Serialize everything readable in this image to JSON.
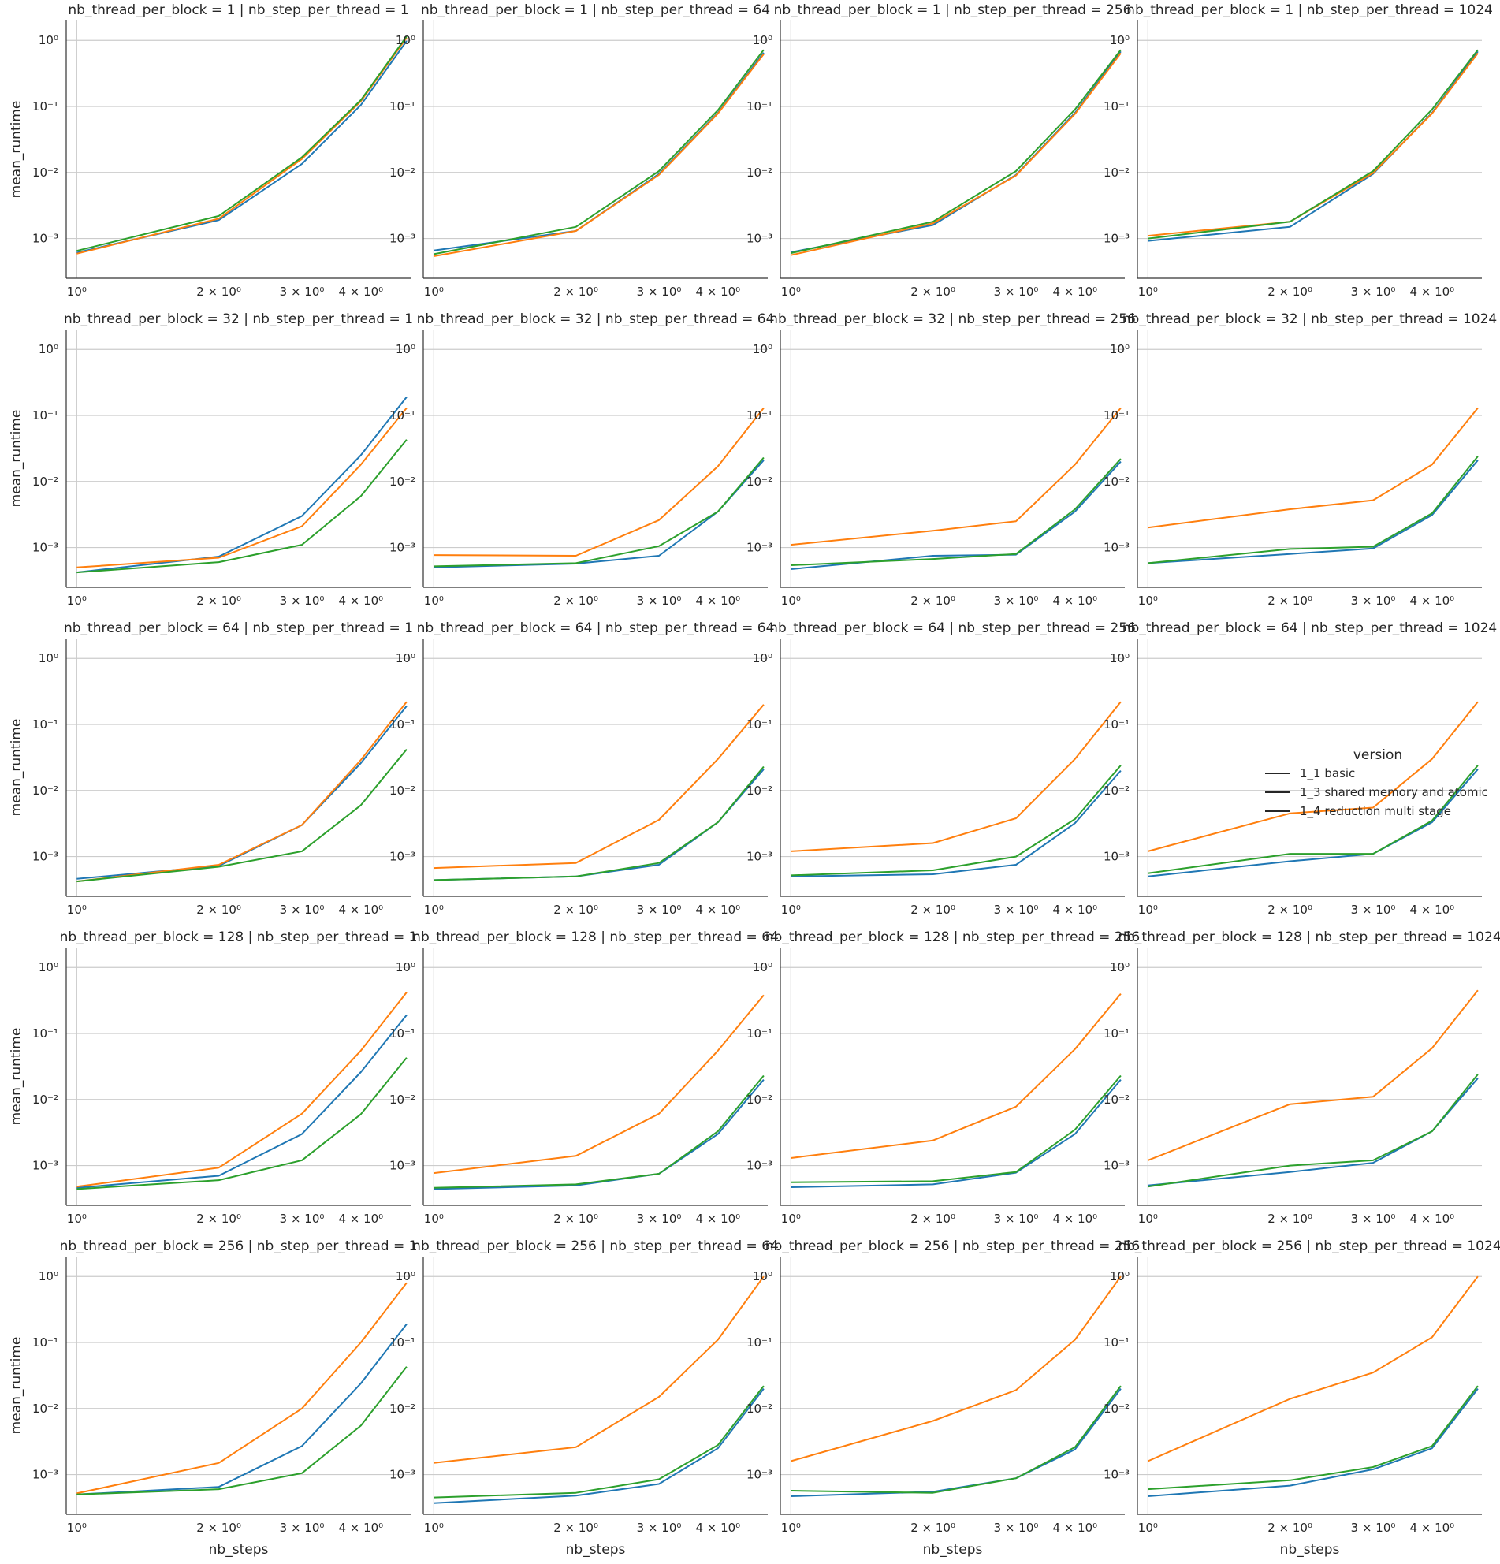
{
  "chart_data": {
    "type": "line",
    "facet_row_var": "nb_thread_per_block",
    "facet_col_var": "nb_step_per_thread",
    "row_values": [
      1,
      32,
      64,
      128,
      256
    ],
    "col_values": [
      1,
      64,
      256,
      1024
    ],
    "xlabel": "nb_steps",
    "ylabel": "mean_runtime",
    "xscale": "log",
    "yscale": "log",
    "x_ticks": [
      {
        "value": 1,
        "label": "10⁰"
      },
      {
        "value": 2,
        "label": "2 × 10⁰"
      },
      {
        "value": 3,
        "label": "3 × 10⁰"
      },
      {
        "value": 4,
        "label": "4 × 10⁰"
      }
    ],
    "y_ticks": [
      {
        "value": 0.001,
        "label": "10⁻³"
      },
      {
        "value": 0.01,
        "label": "10⁻²"
      },
      {
        "value": 0.1,
        "label": "10⁻¹"
      },
      {
        "value": 1,
        "label": "10⁰"
      }
    ],
    "xlim": [
      0.95,
      5.1
    ],
    "ylim": [
      0.00025,
      2.0
    ],
    "x": [
      1,
      2,
      3,
      4,
      5
    ],
    "grid": "horizontal",
    "legend": {
      "title": "version",
      "placement": "right",
      "entries": [
        {
          "name": "1_1 basic",
          "color": "#1f77b4"
        },
        {
          "name": "1_3 shared memory and atomic",
          "color": "#ff7f0e"
        },
        {
          "name": "1_4 reduction multi stage",
          "color": "#2ca02c"
        }
      ]
    },
    "panels": [
      {
        "title": "nb_thread_per_block = 1 | nb_step_per_thread = 1",
        "series": [
          {
            "name": "1_1 basic",
            "values": [
              0.00061,
              0.0019,
              0.0135,
              0.105,
              0.98
            ]
          },
          {
            "name": "1_3 shared memory and atomic",
            "values": [
              0.00059,
              0.002,
              0.016,
              0.12,
              1.1
            ]
          },
          {
            "name": "1_4 reduction multi stage",
            "values": [
              0.00065,
              0.0022,
              0.017,
              0.125,
              1.15
            ]
          }
        ]
      },
      {
        "title": "nb_thread_per_block = 1 | nb_step_per_thread = 64",
        "series": [
          {
            "name": "1_1 basic",
            "values": [
              0.00066,
              0.0013,
              0.0095,
              0.08,
              0.65
            ]
          },
          {
            "name": "1_3 shared memory and atomic",
            "values": [
              0.00054,
              0.0013,
              0.0092,
              0.078,
              0.62
            ]
          },
          {
            "name": "1_4 reduction multi stage",
            "values": [
              0.00058,
              0.0015,
              0.0105,
              0.088,
              0.72
            ]
          }
        ]
      },
      {
        "title": "nb_thread_per_block = 1 | nb_step_per_thread = 256",
        "series": [
          {
            "name": "1_1 basic",
            "values": [
              0.00062,
              0.0016,
              0.0092,
              0.08,
              0.68
            ]
          },
          {
            "name": "1_3 shared memory and atomic",
            "values": [
              0.00056,
              0.0017,
              0.009,
              0.077,
              0.64
            ]
          },
          {
            "name": "1_4 reduction multi stage",
            "values": [
              0.0006,
              0.0018,
              0.0105,
              0.09,
              0.72
            ]
          }
        ]
      },
      {
        "title": "nb_thread_per_block = 1 | nb_step_per_thread = 1024",
        "series": [
          {
            "name": "1_1 basic",
            "values": [
              0.00092,
              0.0015,
              0.0095,
              0.08,
              0.68
            ]
          },
          {
            "name": "1_3 shared memory and atomic",
            "values": [
              0.0011,
              0.0018,
              0.0098,
              0.078,
              0.64
            ]
          },
          {
            "name": "1_4 reduction multi stage",
            "values": [
              0.001,
              0.0018,
              0.0105,
              0.09,
              0.72
            ]
          }
        ]
      },
      {
        "title": "nb_thread_per_block = 32 | nb_step_per_thread = 1",
        "series": [
          {
            "name": "1_1 basic",
            "values": [
              0.00042,
              0.00073,
              0.003,
              0.025,
              0.19
            ]
          },
          {
            "name": "1_3 shared memory and atomic",
            "values": [
              0.0005,
              0.0007,
              0.0021,
              0.018,
              0.13
            ]
          },
          {
            "name": "1_4 reduction multi stage",
            "values": [
              0.00042,
              0.0006,
              0.0011,
              0.006,
              0.043
            ]
          }
        ]
      },
      {
        "title": "nb_thread_per_block = 32 | nb_step_per_thread = 64",
        "series": [
          {
            "name": "1_1 basic",
            "values": [
              0.0005,
              0.00057,
              0.00075,
              0.0035,
              0.021
            ]
          },
          {
            "name": "1_3 shared memory and atomic",
            "values": [
              0.00077,
              0.00075,
              0.0026,
              0.017,
              0.13
            ]
          },
          {
            "name": "1_4 reduction multi stage",
            "values": [
              0.00052,
              0.00058,
              0.00105,
              0.0035,
              0.023
            ]
          }
        ]
      },
      {
        "title": "nb_thread_per_block = 32 | nb_step_per_thread = 256",
        "series": [
          {
            "name": "1_1 basic",
            "values": [
              0.00047,
              0.00075,
              0.00078,
              0.0035,
              0.02
            ]
          },
          {
            "name": "1_3 shared memory and atomic",
            "values": [
              0.0011,
              0.0018,
              0.0025,
              0.018,
              0.13
            ]
          },
          {
            "name": "1_4 reduction multi stage",
            "values": [
              0.00054,
              0.00067,
              0.0008,
              0.0038,
              0.022
            ]
          }
        ]
      },
      {
        "title": "nb_thread_per_block = 32 | nb_step_per_thread = 1024",
        "series": [
          {
            "name": "1_1 basic",
            "values": [
              0.00058,
              0.0008,
              0.00097,
              0.0031,
              0.021
            ]
          },
          {
            "name": "1_3 shared memory and atomic",
            "values": [
              0.002,
              0.0038,
              0.0052,
              0.018,
              0.13
            ]
          },
          {
            "name": "1_4 reduction multi stage",
            "values": [
              0.00058,
              0.00095,
              0.00103,
              0.0033,
              0.024
            ]
          }
        ]
      },
      {
        "title": "nb_thread_per_block = 64 | nb_step_per_thread = 1",
        "series": [
          {
            "name": "1_1 basic",
            "values": [
              0.00046,
              0.00072,
              0.003,
              0.026,
              0.19
            ]
          },
          {
            "name": "1_3 shared memory and atomic",
            "values": [
              0.00042,
              0.00075,
              0.003,
              0.029,
              0.22
            ]
          },
          {
            "name": "1_4 reduction multi stage",
            "values": [
              0.00042,
              0.0007,
              0.0012,
              0.006,
              0.042
            ]
          }
        ]
      },
      {
        "title": "nb_thread_per_block = 64 | nb_step_per_thread = 64",
        "series": [
          {
            "name": "1_1 basic",
            "values": [
              0.00044,
              0.0005,
              0.00075,
              0.0033,
              0.021
            ]
          },
          {
            "name": "1_3 shared memory and atomic",
            "values": [
              0.00067,
              0.0008,
              0.0036,
              0.03,
              0.2
            ]
          },
          {
            "name": "1_4 reduction multi stage",
            "values": [
              0.00044,
              0.0005,
              0.0008,
              0.0033,
              0.023
            ]
          }
        ]
      },
      {
        "title": "nb_thread_per_block = 64 | nb_step_per_thread = 256",
        "series": [
          {
            "name": "1_1 basic",
            "values": [
              0.0005,
              0.00054,
              0.00075,
              0.0032,
              0.02
            ]
          },
          {
            "name": "1_3 shared memory and atomic",
            "values": [
              0.0012,
              0.0016,
              0.0038,
              0.03,
              0.22
            ]
          },
          {
            "name": "1_4 reduction multi stage",
            "values": [
              0.00052,
              0.00062,
              0.001,
              0.0037,
              0.024
            ]
          }
        ]
      },
      {
        "title": "nb_thread_per_block = 64 | nb_step_per_thread = 1024",
        "series": [
          {
            "name": "1_1 basic",
            "values": [
              0.0005,
              0.00085,
              0.0011,
              0.0033,
              0.021
            ]
          },
          {
            "name": "1_3 shared memory and atomic",
            "values": [
              0.0012,
              0.0045,
              0.0055,
              0.03,
              0.22
            ]
          },
          {
            "name": "1_4 reduction multi stage",
            "values": [
              0.00056,
              0.0011,
              0.0011,
              0.0035,
              0.024
            ]
          }
        ]
      },
      {
        "title": "nb_thread_per_block = 128 | nb_step_per_thread = 1",
        "series": [
          {
            "name": "1_1 basic",
            "values": [
              0.00046,
              0.0007,
              0.003,
              0.026,
              0.19
            ]
          },
          {
            "name": "1_3 shared memory and atomic",
            "values": [
              0.00048,
              0.00093,
              0.0061,
              0.055,
              0.42
            ]
          },
          {
            "name": "1_4 reduction multi stage",
            "values": [
              0.00044,
              0.0006,
              0.0012,
              0.006,
              0.043
            ]
          }
        ]
      },
      {
        "title": "nb_thread_per_block = 128 | nb_step_per_thread = 64",
        "series": [
          {
            "name": "1_1 basic",
            "values": [
              0.00044,
              0.0005,
              0.00075,
              0.003,
              0.02
            ]
          },
          {
            "name": "1_3 shared memory and atomic",
            "values": [
              0.00077,
              0.0014,
              0.0061,
              0.055,
              0.38
            ]
          },
          {
            "name": "1_4 reduction multi stage",
            "values": [
              0.00046,
              0.00052,
              0.00075,
              0.0033,
              0.023
            ]
          }
        ]
      },
      {
        "title": "nb_thread_per_block = 128 | nb_step_per_thread = 256",
        "series": [
          {
            "name": "1_1 basic",
            "values": [
              0.00047,
              0.00052,
              0.00078,
              0.003,
              0.02
            ]
          },
          {
            "name": "1_3 shared memory and atomic",
            "values": [
              0.0013,
              0.0024,
              0.0078,
              0.058,
              0.4
            ]
          },
          {
            "name": "1_4 reduction multi stage",
            "values": [
              0.00056,
              0.00058,
              0.0008,
              0.0035,
              0.023
            ]
          }
        ]
      },
      {
        "title": "nb_thread_per_block = 128 | nb_step_per_thread = 1024",
        "series": [
          {
            "name": "1_1 basic",
            "values": [
              0.0005,
              0.0008,
              0.0011,
              0.0033,
              0.021
            ]
          },
          {
            "name": "1_3 shared memory and atomic",
            "values": [
              0.0012,
              0.0085,
              0.011,
              0.06,
              0.45
            ]
          },
          {
            "name": "1_4 reduction multi stage",
            "values": [
              0.00048,
              0.001,
              0.0012,
              0.0033,
              0.024
            ]
          }
        ]
      },
      {
        "title": "nb_thread_per_block = 256 | nb_step_per_thread = 1",
        "series": [
          {
            "name": "1_1 basic",
            "values": [
              0.0005,
              0.00065,
              0.0027,
              0.024,
              0.19
            ]
          },
          {
            "name": "1_3 shared memory and atomic",
            "values": [
              0.00052,
              0.0015,
              0.01,
              0.1,
              0.8
            ]
          },
          {
            "name": "1_4 reduction multi stage",
            "values": [
              0.0005,
              0.0006,
              0.00105,
              0.0055,
              0.043
            ]
          }
        ]
      },
      {
        "title": "nb_thread_per_block = 256 | nb_step_per_thread = 64",
        "series": [
          {
            "name": "1_1 basic",
            "values": [
              0.00037,
              0.00048,
              0.00072,
              0.0025,
              0.02
            ]
          },
          {
            "name": "1_3 shared memory and atomic",
            "values": [
              0.0015,
              0.0026,
              0.015,
              0.11,
              1.0
            ]
          },
          {
            "name": "1_4 reduction multi stage",
            "values": [
              0.00045,
              0.00053,
              0.00085,
              0.0028,
              0.022
            ]
          }
        ]
      },
      {
        "title": "nb_thread_per_block = 256 | nb_step_per_thread = 256",
        "series": [
          {
            "name": "1_1 basic",
            "values": [
              0.00047,
              0.00055,
              0.00088,
              0.0024,
              0.02
            ]
          },
          {
            "name": "1_3 shared memory and atomic",
            "values": [
              0.0016,
              0.0065,
              0.019,
              0.11,
              1.0
            ]
          },
          {
            "name": "1_4 reduction multi stage",
            "values": [
              0.00057,
              0.00053,
              0.00088,
              0.0026,
              0.022
            ]
          }
        ]
      },
      {
        "title": "nb_thread_per_block = 256 | nb_step_per_thread = 1024",
        "series": [
          {
            "name": "1_1 basic",
            "values": [
              0.00047,
              0.00068,
              0.0012,
              0.0025,
              0.02
            ]
          },
          {
            "name": "1_3 shared memory and atomic",
            "values": [
              0.0016,
              0.014,
              0.035,
              0.12,
              1.0
            ]
          },
          {
            "name": "1_4 reduction multi stage",
            "values": [
              0.0006,
              0.00082,
              0.0013,
              0.0027,
              0.022
            ]
          }
        ]
      }
    ]
  }
}
